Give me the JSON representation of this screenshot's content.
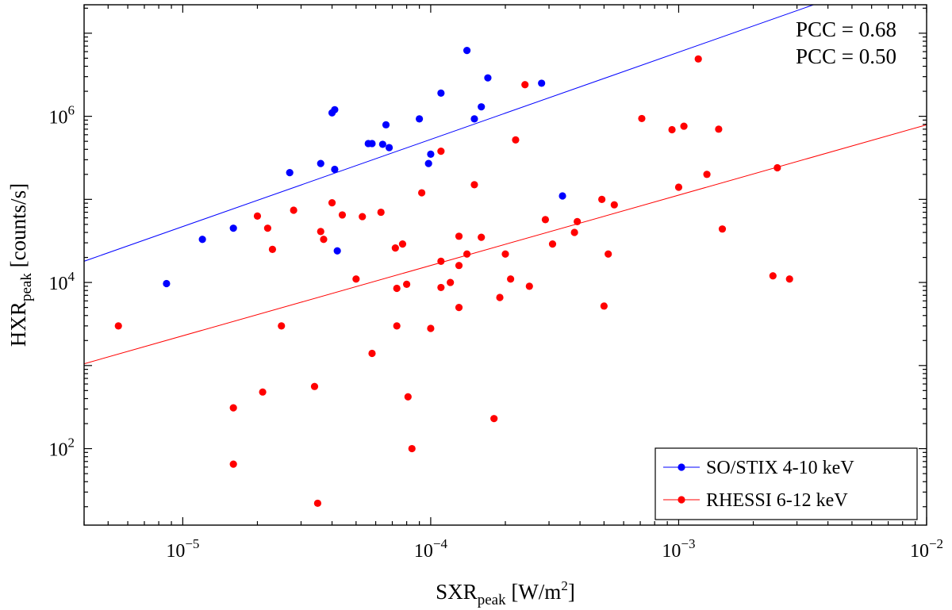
{
  "chart_data": {
    "type": "scatter",
    "title": "",
    "xlabel": {
      "main": "SXR",
      "sub": "peak",
      "unit_pre": " [W/m",
      "unit_sup": "2",
      "unit_post": "]"
    },
    "ylabel": {
      "main": "HXR",
      "sub": "peak",
      "unit": " [counts/s]"
    },
    "xscale": "log",
    "yscale": "log",
    "xlim": [
      4e-06,
      0.01
    ],
    "ylim": [
      12,
      22000000.0
    ],
    "x_ticks": [
      {
        "value": 1e-05,
        "base": "10",
        "exp": "−5"
      },
      {
        "value": 0.0001,
        "base": "10",
        "exp": "−4"
      },
      {
        "value": 0.001,
        "base": "10",
        "exp": "−3"
      },
      {
        "value": 0.01,
        "base": "10",
        "exp": "−2"
      }
    ],
    "y_ticks": [
      {
        "value": 100.0,
        "base": "10",
        "exp": "2"
      },
      {
        "value": 10000.0,
        "base": "10",
        "exp": "4"
      },
      {
        "value": 1000000.0,
        "base": "10",
        "exp": "6"
      }
    ],
    "grid": false,
    "legend_position": "bottom-right",
    "series": [
      {
        "name": "SO/STIX 4-10 keV",
        "color": "#0000ff",
        "pcc_label": "PCC = 0.68",
        "fit": {
          "x": [
            4e-06,
            0.0035
          ],
          "y": [
            18000,
            22000000.0
          ]
        },
        "points": [
          [
            8.6e-06,
            9700
          ],
          [
            1.2e-05,
            33000
          ],
          [
            1.6e-05,
            45000
          ],
          [
            2.7e-05,
            210000
          ],
          [
            3.6e-05,
            270000
          ],
          [
            4e-05,
            1100000.0
          ],
          [
            4.1e-05,
            1200000.0
          ],
          [
            4.1e-05,
            230000
          ],
          [
            4.2e-05,
            24000
          ],
          [
            5.6e-05,
            470000
          ],
          [
            5.8e-05,
            470000
          ],
          [
            6.4e-05,
            460000
          ],
          [
            6.6e-05,
            790000
          ],
          [
            6.8e-05,
            420000
          ],
          [
            9e-05,
            930000
          ],
          [
            9.8e-05,
            270000
          ],
          [
            0.0001,
            350000
          ],
          [
            0.00011,
            1900000.0
          ],
          [
            0.00014,
            6200000.0
          ],
          [
            0.00015,
            930000
          ],
          [
            0.00016,
            1300000.0
          ],
          [
            0.00017,
            2900000.0
          ],
          [
            0.00028,
            2500000.0
          ],
          [
            0.00034,
            110000
          ]
        ]
      },
      {
        "name": "RHESSI 6-12 keV",
        "color": "#ff0000",
        "pcc_label": "PCC = 0.50",
        "fit": {
          "x": [
            4e-06,
            0.01
          ],
          "y": [
            1050,
            790000
          ]
        },
        "points": [
          [
            5.5e-06,
            3000
          ],
          [
            1.6e-05,
            310
          ],
          [
            1.6e-05,
            65
          ],
          [
            2e-05,
            63000
          ],
          [
            2.1e-05,
            480
          ],
          [
            2.2e-05,
            45000
          ],
          [
            2.3e-05,
            25000
          ],
          [
            2.5e-05,
            3000
          ],
          [
            2.8e-05,
            74000
          ],
          [
            3.4e-05,
            560
          ],
          [
            3.5e-05,
            22
          ],
          [
            3.6e-05,
            41000
          ],
          [
            3.7e-05,
            33000
          ],
          [
            4e-05,
            91000
          ],
          [
            4.4e-05,
            65000
          ],
          [
            5e-05,
            11000
          ],
          [
            5.3e-05,
            62000
          ],
          [
            5.8e-05,
            1400
          ],
          [
            6.3e-05,
            70000
          ],
          [
            7.2e-05,
            26000
          ],
          [
            7.3e-05,
            8500
          ],
          [
            7.3e-05,
            3000
          ],
          [
            7.7e-05,
            29000
          ],
          [
            8e-05,
            9500
          ],
          [
            8.1e-05,
            420
          ],
          [
            8.4e-05,
            100
          ],
          [
            9.2e-05,
            120000
          ],
          [
            0.0001,
            2800
          ],
          [
            0.00011,
            8700
          ],
          [
            0.00011,
            18000
          ],
          [
            0.00011,
            380000
          ],
          [
            0.00012,
            10000
          ],
          [
            0.00013,
            16000
          ],
          [
            0.00013,
            36000
          ],
          [
            0.00013,
            5000
          ],
          [
            0.00014,
            22000
          ],
          [
            0.00015,
            150000
          ],
          [
            0.00016,
            35000
          ],
          [
            0.00018,
            230
          ],
          [
            0.00019,
            6600
          ],
          [
            0.0002,
            22000
          ],
          [
            0.00021,
            11000
          ],
          [
            0.00022,
            520000
          ],
          [
            0.00024,
            2400000.0
          ],
          [
            0.00025,
            9000
          ],
          [
            0.00029,
            57000
          ],
          [
            0.00031,
            29000
          ],
          [
            0.00038,
            40000
          ],
          [
            0.00039,
            54000
          ],
          [
            0.00049,
            100000
          ],
          [
            0.0005,
            5200
          ],
          [
            0.00052,
            22000
          ],
          [
            0.00055,
            86000
          ],
          [
            0.00071,
            940000
          ],
          [
            0.00094,
            690000
          ],
          [
            0.001,
            140000
          ],
          [
            0.00105,
            760000
          ],
          [
            0.0012,
            4900000.0
          ],
          [
            0.0013,
            200000
          ],
          [
            0.00145,
            700000
          ],
          [
            0.0015,
            44000
          ],
          [
            0.0024,
            12000
          ],
          [
            0.0025,
            240000
          ],
          [
            0.0028,
            11000
          ]
        ]
      }
    ]
  }
}
